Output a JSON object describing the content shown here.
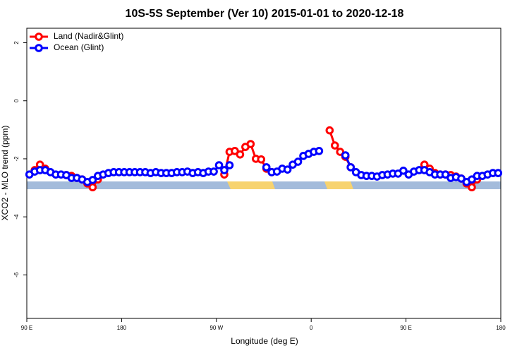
{
  "chart_data": {
    "type": "line",
    "title": "10S-5S September (Ver 10)   2015-01-01 to 2020-12-18",
    "x_label": "Longitude (deg E)",
    "y_label": "XCO2 - MLO trend (ppm)",
    "x": [
      92.5,
      97.5,
      102.5,
      107.5,
      112.5,
      117.5,
      122.5,
      127.5,
      132.5,
      137.5,
      142.5,
      147.5,
      152.5,
      157.5,
      162.5,
      167.5,
      172.5,
      177.5,
      182.5,
      187.5,
      192.5,
      197.5,
      202.5,
      207.5,
      212.5,
      217.5,
      222.5,
      227.5,
      232.5,
      237.5,
      242.5,
      247.5,
      252.5,
      257.5,
      262.5,
      267.5,
      272.5,
      277.5,
      282.5,
      287.5,
      292.5,
      297.5,
      302.5,
      307.5,
      312.5,
      317.5,
      322.5,
      327.5,
      332.5,
      337.5,
      342.5,
      347.5,
      352.5,
      357.5,
      362.5,
      367.5,
      372.5,
      377.5,
      382.5,
      387.5,
      392.5,
      397.5,
      402.5,
      407.5,
      412.5,
      417.5,
      422.5,
      427.5,
      432.5,
      437.5,
      442.5,
      447.5,
      452.5,
      457.5,
      462.5,
      467.5,
      472.5,
      477.5,
      482.5,
      487.5,
      492.5,
      497.5,
      502.5,
      507.5,
      512.5,
      517.5,
      522.5,
      527.5,
      532.5,
      537.5
    ],
    "series": [
      {
        "name": "Land (Nadir&Glint)",
        "color": "#ff0000",
        "values": [
          null,
          -2.39,
          -2.2,
          -2.34,
          null,
          null,
          null,
          -2.56,
          -2.59,
          -2.66,
          -2.71,
          -2.85,
          -2.98,
          -2.71,
          null,
          null,
          null,
          null,
          null,
          null,
          null,
          null,
          null,
          null,
          null,
          null,
          null,
          null,
          null,
          null,
          null,
          null,
          null,
          null,
          null,
          null,
          null,
          -2.54,
          -1.76,
          -1.73,
          -1.85,
          -1.59,
          -1.49,
          -2.0,
          -2.02,
          -2.34,
          -2.46,
          null,
          null,
          null,
          null,
          null,
          null,
          null,
          null,
          null,
          null,
          -1.02,
          -1.54,
          -1.76,
          -1.93,
          -2.29,
          null,
          null,
          null,
          null,
          null,
          null,
          null,
          null,
          null,
          null,
          null,
          null,
          null,
          -2.2,
          -2.34,
          -2.49,
          -2.54,
          -2.54,
          -2.56,
          -2.61,
          -2.68,
          -2.85,
          -2.98,
          -2.71,
          null,
          null,
          null,
          null
        ]
      },
      {
        "name": "Ocean (Glint)",
        "color": "#0000ff",
        "values": [
          -2.54,
          -2.44,
          -2.39,
          -2.39,
          -2.46,
          -2.54,
          -2.54,
          -2.56,
          -2.66,
          -2.66,
          -2.71,
          -2.8,
          -2.73,
          -2.59,
          -2.54,
          -2.49,
          -2.46,
          -2.46,
          -2.46,
          -2.46,
          -2.46,
          -2.46,
          -2.46,
          -2.49,
          -2.46,
          -2.49,
          -2.49,
          -2.49,
          -2.46,
          -2.46,
          -2.44,
          -2.49,
          -2.46,
          -2.49,
          -2.44,
          -2.44,
          -2.22,
          -2.39,
          -2.22,
          null,
          null,
          null,
          null,
          null,
          null,
          -2.29,
          -2.46,
          -2.44,
          -2.34,
          -2.37,
          -2.2,
          -2.1,
          -1.9,
          -1.83,
          -1.76,
          -1.73,
          null,
          null,
          null,
          null,
          -1.88,
          -2.29,
          -2.46,
          -2.56,
          -2.59,
          -2.59,
          -2.61,
          -2.56,
          -2.54,
          -2.51,
          -2.51,
          -2.41,
          -2.54,
          -2.44,
          -2.39,
          -2.39,
          -2.46,
          -2.54,
          -2.54,
          -2.54,
          -2.66,
          -2.63,
          -2.68,
          -2.8,
          -2.71,
          -2.59,
          -2.59,
          -2.54,
          -2.49,
          -2.49
        ]
      }
    ],
    "xlim": [
      90,
      540
    ],
    "xticks": [
      {
        "value": 90,
        "label": "90 E"
      },
      180,
      {
        "value": 270,
        "label": "90 W"
      },
      {
        "value": 360,
        "label": "0"
      },
      {
        "value": 450,
        "label": "90 E"
      },
      {
        "value": 540,
        "label": "180"
      }
    ],
    "ylim": [
      -7.5,
      2.5
    ],
    "yticks": [
      2,
      0,
      -2,
      -4,
      -6
    ],
    "legend": "top-left"
  }
}
